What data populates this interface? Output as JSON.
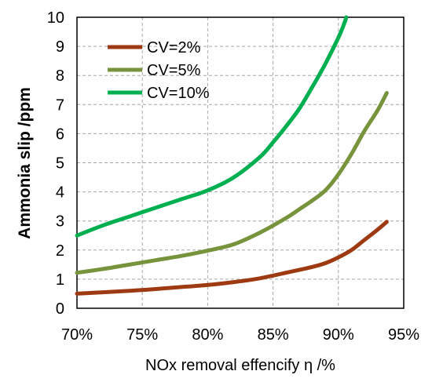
{
  "chart_data": {
    "type": "line",
    "title": "",
    "xlabel": "NOx removal effencify η /%",
    "ylabel": "Ammonia slip /ppm",
    "xlim": [
      70,
      95
    ],
    "ylim": [
      0,
      10
    ],
    "x_ticks": [
      70,
      75,
      80,
      85,
      90,
      95
    ],
    "x_tick_labels": [
      "70%",
      "75%",
      "80%",
      "85%",
      "90%",
      "95%"
    ],
    "y_ticks": [
      0,
      1,
      2,
      3,
      4,
      5,
      6,
      7,
      8,
      9,
      10
    ],
    "y_tick_labels": [
      "0",
      "1",
      "2",
      "3",
      "4",
      "5",
      "6",
      "7",
      "8",
      "9",
      "10"
    ],
    "grid": true,
    "legend_position": "top-left",
    "series": [
      {
        "name": "CV=2%",
        "color": "#9e3a12",
        "x": [
          70,
          72,
          74,
          76,
          78,
          80,
          82,
          84,
          86,
          88,
          89,
          90,
          91,
          92,
          93,
          93.7
        ],
        "y": [
          0.5,
          0.55,
          0.6,
          0.66,
          0.73,
          0.8,
          0.9,
          1.03,
          1.22,
          1.42,
          1.55,
          1.75,
          2.0,
          2.35,
          2.7,
          2.97
        ]
      },
      {
        "name": "CV=5%",
        "color": "#77933c",
        "x": [
          70,
          72,
          74,
          76,
          78,
          80,
          82,
          84,
          86,
          87,
          88,
          89,
          90,
          91,
          92,
          93,
          93.7
        ],
        "y": [
          1.22,
          1.35,
          1.5,
          1.65,
          1.8,
          1.98,
          2.2,
          2.6,
          3.1,
          3.4,
          3.7,
          4.05,
          4.6,
          5.3,
          6.1,
          6.8,
          7.4
        ]
      },
      {
        "name": "CV=10%",
        "color": "#00b050",
        "x": [
          70,
          72,
          74,
          76,
          78,
          80,
          82,
          84,
          85,
          86,
          87,
          88,
          89,
          90,
          90.5,
          90.6
        ],
        "y": [
          2.5,
          2.85,
          3.15,
          3.45,
          3.75,
          4.05,
          4.5,
          5.2,
          5.7,
          6.25,
          6.85,
          7.6,
          8.4,
          9.3,
          9.85,
          10.0
        ]
      }
    ]
  }
}
